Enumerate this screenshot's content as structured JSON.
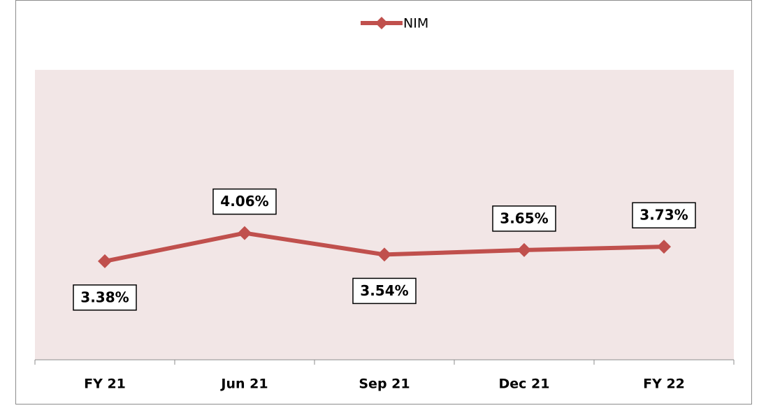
{
  "chart_data": {
    "type": "line",
    "categories": [
      "FY 21",
      "Jun 21",
      "Sep 21",
      "Dec 21",
      "FY 22"
    ],
    "series": [
      {
        "name": "NIM",
        "color": "#c0504d",
        "values": [
          3.38,
          4.06,
          3.54,
          3.65,
          3.73
        ],
        "value_labels": [
          "3.38%",
          "4.06%",
          "3.54%",
          "3.65%",
          "3.73%"
        ]
      }
    ],
    "ylim": [
      1,
      8
    ],
    "legend": "top"
  }
}
